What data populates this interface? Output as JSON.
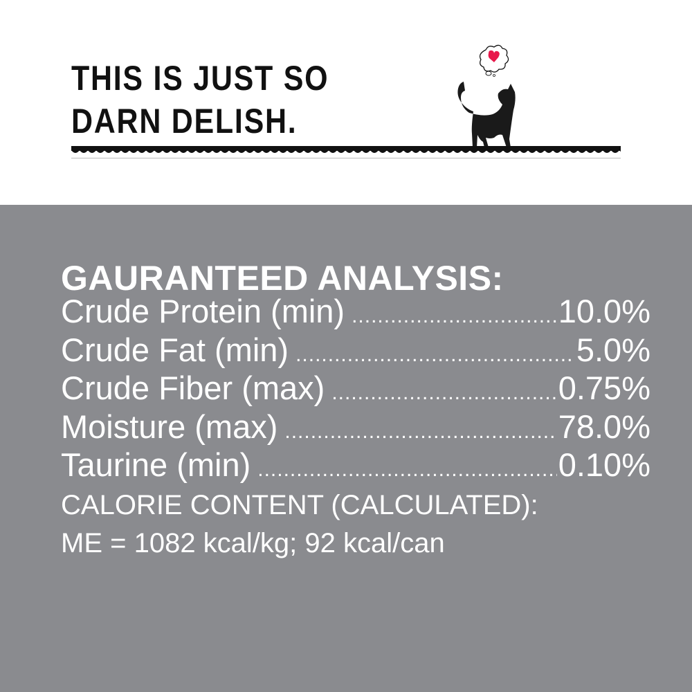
{
  "header": {
    "headline_lines": [
      "THIS IS JUST SO",
      "DARN DELISH."
    ],
    "illustration": "black-cat-thinking-heart-icon",
    "accent_color": "#e8174a"
  },
  "analysis": {
    "title": "GAURANTEED ANALYSIS:",
    "rows": [
      {
        "label": "Crude Protein (min)",
        "value": "10.0%"
      },
      {
        "label": "Crude Fat (min)",
        "value": "5.0%"
      },
      {
        "label": "Crude Fiber (max)",
        "value": "0.75%"
      },
      {
        "label": "Moisture (max)",
        "value": "78.0%"
      },
      {
        "label": "Taurine (min)",
        "value": "0.10%"
      }
    ],
    "calorie_heading": "CALORIE CONTENT (CALCULATED):",
    "calorie_value": "ME = 1082 kcal/kg; 92 kcal/can",
    "background_color": "#8a8b8f"
  }
}
